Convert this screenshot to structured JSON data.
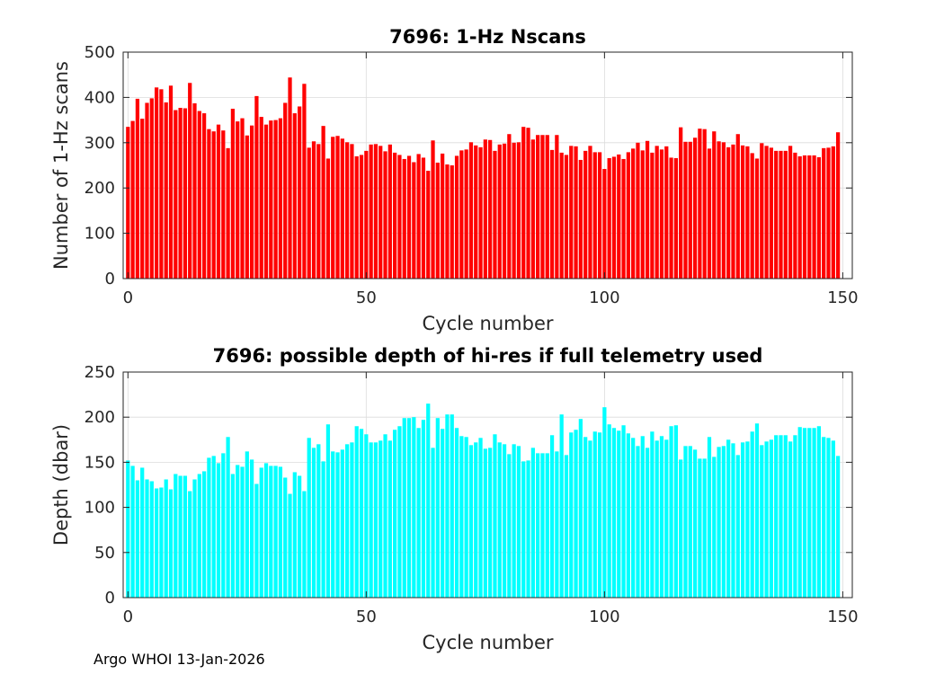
{
  "footer_text": "Argo WHOI 13-Jan-2026",
  "chart_data": [
    {
      "type": "bar",
      "title": "7696: 1-Hz Nscans",
      "xlabel": "Cycle number",
      "ylabel": "Number of 1-Hz scans",
      "xlim": [
        -1,
        152
      ],
      "ylim": [
        0,
        500
      ],
      "xticks": [
        "0",
        "50",
        "100",
        "150"
      ],
      "yticks": [
        "0",
        "100",
        "200",
        "300",
        "400",
        "500"
      ],
      "grid": true,
      "color": "#ff0000",
      "x_start": 0,
      "values": [
        335,
        348,
        397,
        353,
        388,
        398,
        422,
        418,
        389,
        426,
        372,
        377,
        376,
        432,
        387,
        370,
        365,
        330,
        325,
        340,
        327,
        288,
        375,
        347,
        354,
        316,
        338,
        403,
        357,
        340,
        349,
        350,
        354,
        388,
        444,
        365,
        380,
        430,
        289,
        303,
        297,
        337,
        265,
        313,
        315,
        309,
        301,
        297,
        270,
        273,
        282,
        296,
        297,
        293,
        281,
        296,
        278,
        273,
        264,
        271,
        257,
        275,
        267,
        238,
        305,
        256,
        276,
        252,
        250,
        271,
        283,
        285,
        301,
        294,
        290,
        307,
        306,
        282,
        296,
        298,
        319,
        300,
        301,
        335,
        333,
        307,
        317,
        317,
        317,
        284,
        317,
        278,
        273,
        293,
        292,
        262,
        282,
        293,
        279,
        279,
        242,
        266,
        269,
        274,
        264,
        279,
        287,
        300,
        283,
        304,
        278,
        293,
        285,
        292,
        267,
        266,
        334,
        302,
        302,
        311,
        331,
        330,
        287,
        325,
        303,
        301,
        290,
        296,
        319,
        294,
        292,
        277,
        265,
        299,
        293,
        289,
        282,
        282,
        282,
        293,
        278,
        270,
        272,
        272,
        272,
        268,
        288,
        289,
        292,
        323
      ]
    },
    {
      "type": "bar",
      "title": "7696: possible depth of hi-res if full telemetry used",
      "xlabel": "Cycle number",
      "ylabel": "Depth (dbar)",
      "xlim": [
        -1,
        152
      ],
      "ylim": [
        0,
        250
      ],
      "xticks": [
        "0",
        "50",
        "100",
        "150"
      ],
      "yticks": [
        "0",
        "50",
        "100",
        "150",
        "200",
        "250"
      ],
      "grid": true,
      "color": "#00ffff",
      "x_start": 0,
      "values": [
        152,
        146,
        130,
        144,
        131,
        129,
        121,
        122,
        131,
        120,
        137,
        135,
        135,
        118,
        131,
        137,
        140,
        155,
        157,
        149,
        160,
        178,
        137,
        147,
        145,
        162,
        153,
        126,
        144,
        149,
        146,
        146,
        145,
        133,
        115,
        139,
        135,
        118,
        177,
        166,
        170,
        151,
        192,
        162,
        161,
        164,
        170,
        172,
        190,
        187,
        181,
        172,
        172,
        174,
        181,
        174,
        186,
        190,
        199,
        199,
        200,
        188,
        197,
        215,
        166,
        199,
        187,
        203,
        203,
        188,
        179,
        178,
        169,
        172,
        177,
        165,
        166,
        181,
        172,
        170,
        159,
        170,
        168,
        151,
        152,
        166,
        160,
        160,
        160,
        180,
        162,
        203,
        158,
        183,
        186,
        198,
        178,
        174,
        184,
        183,
        211,
        192,
        188,
        185,
        191,
        182,
        177,
        168,
        179,
        166,
        184,
        174,
        179,
        175,
        190,
        191,
        153,
        168,
        168,
        164,
        154,
        154,
        178,
        156,
        167,
        168,
        175,
        171,
        158,
        172,
        173,
        184,
        193,
        169,
        173,
        175,
        180,
        180,
        180,
        173,
        180,
        189,
        188,
        188,
        188,
        190,
        178,
        177,
        174,
        157
      ]
    }
  ]
}
